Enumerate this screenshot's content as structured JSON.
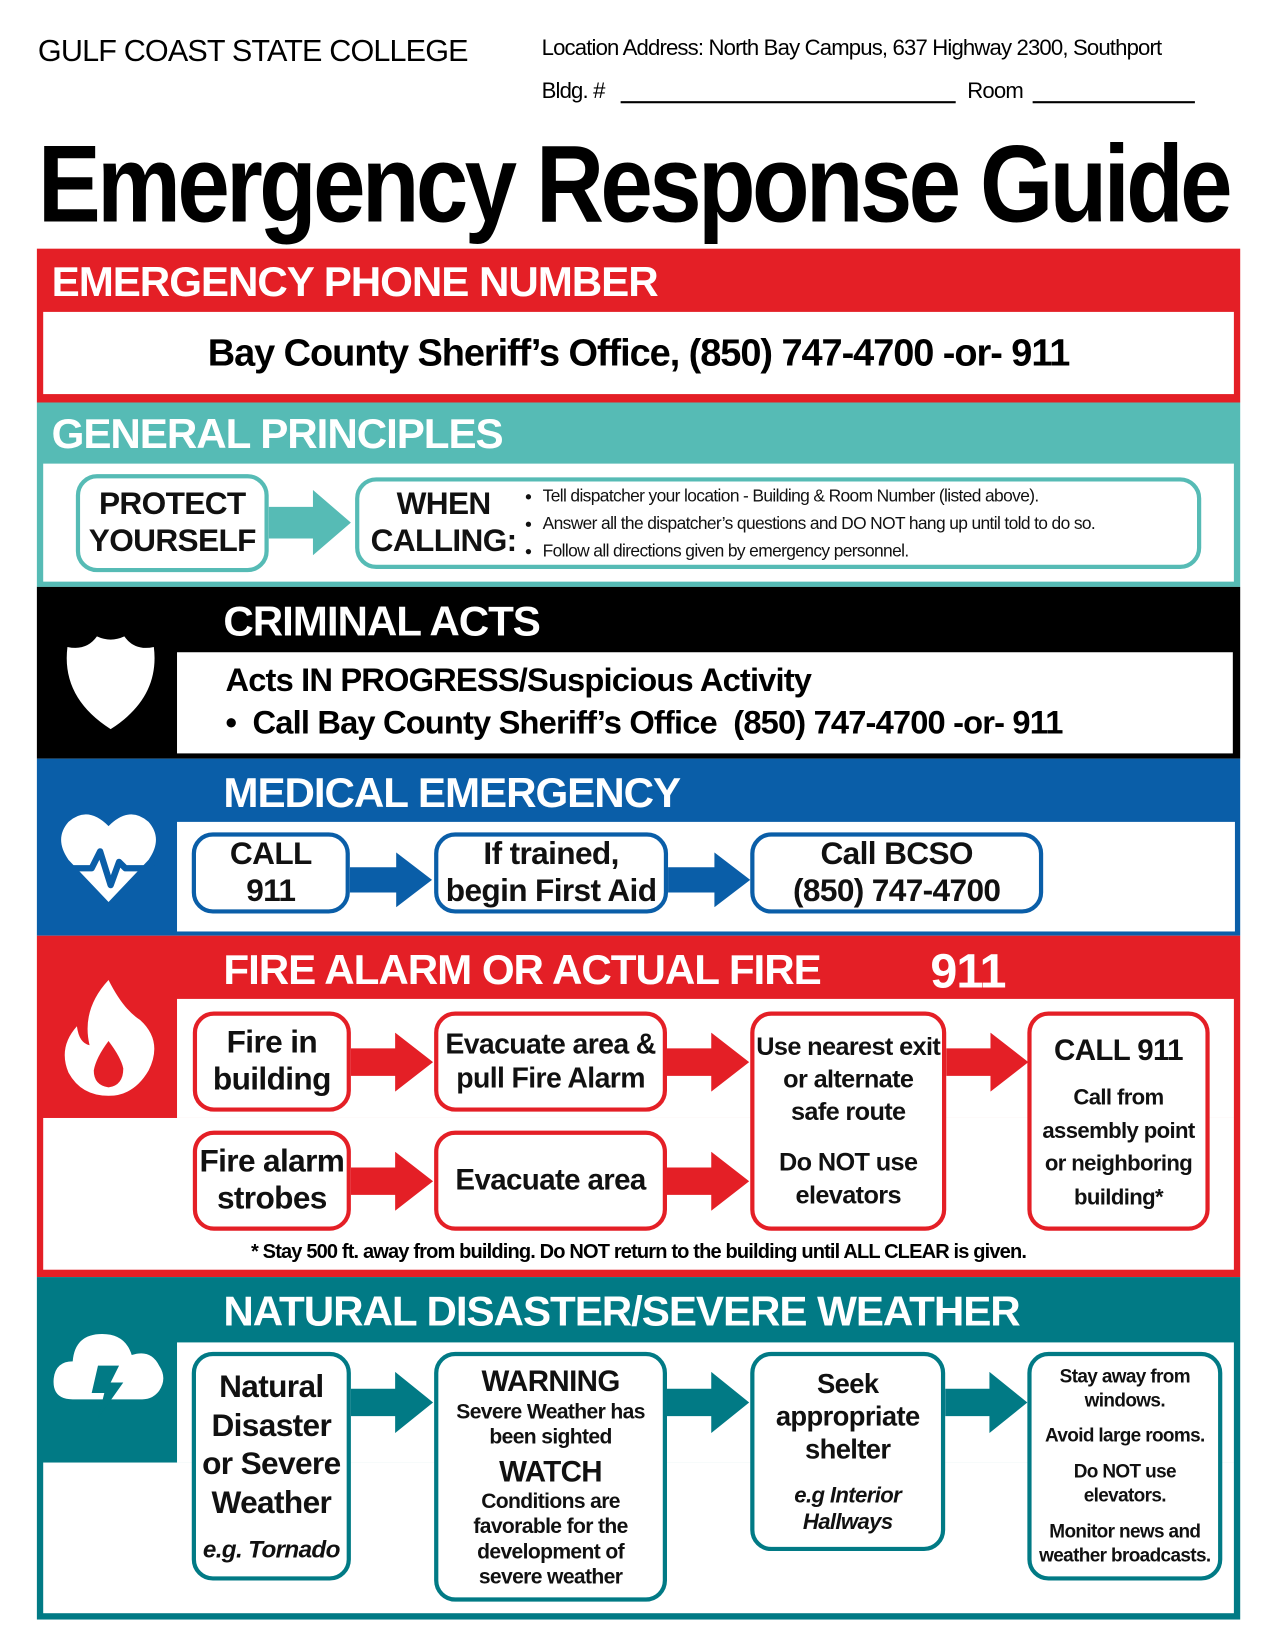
{
  "header": {
    "college": "GULF COAST STATE COLLEGE",
    "location": "Location Address: North Bay Campus, 637 Highway 2300, Southport",
    "bldg_label": "Bldg. #",
    "room_label": "Room",
    "title": "Emergency Response Guide"
  },
  "colors": {
    "red": "#e41f26",
    "light_teal": "#56bbb5",
    "black": "#000000",
    "blue": "#0a5ea8",
    "dark_teal": "#017a85"
  },
  "phone": {
    "heading": "EMERGENCY PHONE NUMBER",
    "text": "Bay County Sheriff’s Office, (850) 747-4700 -or- 911"
  },
  "principles": {
    "heading": "GENERAL PRINCIPLES",
    "protect": [
      "PROTECT",
      "YOURSELF"
    ],
    "when": [
      "WHEN",
      "CALLING:"
    ],
    "bullets": [
      "Tell dispatcher your location - Building & Room Number (listed above).",
      "Answer all the dispatcher’s questions and DO NOT hang up until told to do so.",
      "Follow all directions given by emergency personnel."
    ]
  },
  "criminal": {
    "heading": "CRIMINAL ACTS",
    "icon": "shield-icon",
    "line1": "Acts IN PROGRESS/Suspicious Activity",
    "line2": "•  Call Bay County Sheriff’s Office  (850) 747-4700 -or- 911"
  },
  "medical": {
    "heading": "MEDICAL EMERGENCY",
    "icon": "heart-pulse-icon",
    "steps": [
      [
        "CALL",
        "911"
      ],
      [
        "If trained,",
        "begin First Aid"
      ],
      [
        "Call BCSO",
        "(850) 747-4700"
      ]
    ]
  },
  "fire": {
    "heading": "FIRE ALARM OR ACTUAL FIRE",
    "number": "911",
    "icon": "flame-icon",
    "row1a": [
      "Fire in",
      "building"
    ],
    "row1b": [
      "Evacuate area &",
      "pull Fire Alarm"
    ],
    "row2a": [
      "Fire alarm",
      "strobes"
    ],
    "row2b": "Evacuate area",
    "exit": [
      "Use nearest exit",
      "or alternate",
      "safe route",
      "Do NOT use",
      "elevators"
    ],
    "call": [
      "CALL 911",
      "Call from",
      "assembly point",
      "or neighboring",
      "building*"
    ],
    "footnote": "* Stay 500 ft. away from building. Do NOT return to the building until ALL CLEAR is given."
  },
  "natural": {
    "heading": "NATURAL DISASTER/SEVERE WEATHER",
    "icon": "storm-cloud-icon",
    "box1": [
      "Natural",
      "Disaster",
      "or Severe",
      "Weather",
      "e.g. Tornado"
    ],
    "box2": [
      "WARNING",
      "Severe Weather has",
      "been sighted",
      "WATCH",
      "Conditions are",
      "favorable for the",
      "development of",
      "severe weather"
    ],
    "box3": [
      "Seek",
      "appropriate",
      "shelter",
      "e.g Interior",
      "Hallways"
    ],
    "box4": [
      "Stay away from",
      "windows.",
      "Avoid large rooms.",
      "Do NOT use",
      "elevators.",
      "Monitor news and",
      "weather broadcasts."
    ]
  }
}
